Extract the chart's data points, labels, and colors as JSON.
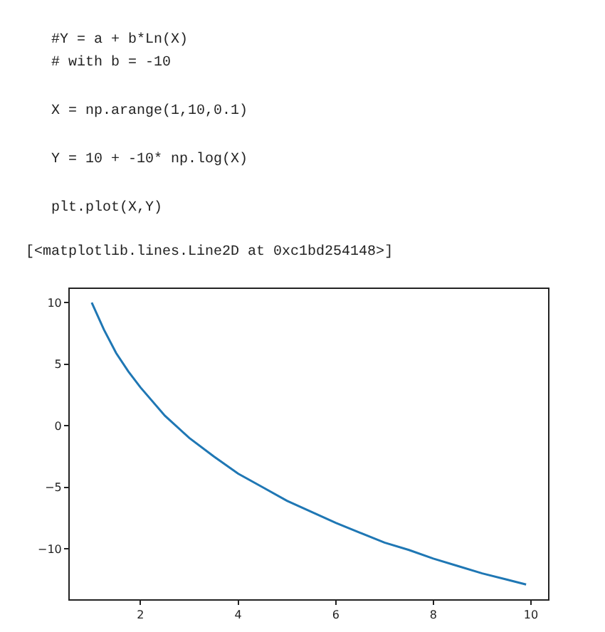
{
  "chart_data": {
    "type": "line",
    "annotations": [
      "#Y = a + b*Ln(X)",
      "# with b = -10",
      "X = np.arange(1,10,0.1)",
      "Y = 10 + -10* np.log(X)",
      "plt.plot(X,Y)",
      "[<matplotlib.lines.Line2D at 0xc1bd254148>]"
    ],
    "x": [
      1,
      1.25,
      1.5,
      1.75,
      2,
      2.5,
      3,
      3.5,
      4,
      4.5,
      5,
      5.5,
      6,
      6.5,
      7,
      7.5,
      8,
      8.5,
      9,
      9.5,
      9.9
    ],
    "series": [
      {
        "color": "#1f77b4",
        "values": [
          10,
          7.8,
          5.9,
          4.4,
          3.1,
          0.8,
          -1.0,
          -2.5,
          -3.9,
          -5.0,
          -6.1,
          -7.0,
          -7.9,
          -8.7,
          -9.5,
          -10.1,
          -10.8,
          -11.4,
          -12.0,
          -12.5,
          -12.9
        ]
      }
    ],
    "xlim": [
      0.55,
      10.35
    ],
    "ylim": [
      -14.1,
      11.1
    ],
    "xticks": [
      2,
      4,
      6,
      8,
      10
    ],
    "yticks": [
      {
        "value": -10,
        "label": "−10"
      },
      {
        "value": -5,
        "label": "−5"
      },
      0,
      5,
      10
    ],
    "marker": "none",
    "line_style": "solid"
  }
}
